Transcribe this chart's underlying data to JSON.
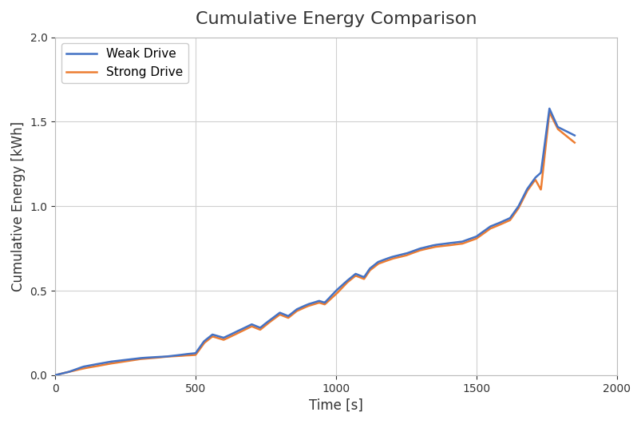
{
  "title": "Cumulative Energy Comparison",
  "xlabel": "Time [s]",
  "ylabel": "Cumulative Energy [kWh]",
  "xlim": [
    0,
    2000
  ],
  "ylim": [
    0,
    2.0
  ],
  "xticks": [
    0,
    500,
    1000,
    1500,
    2000
  ],
  "yticks": [
    0,
    0.5,
    1.0,
    1.5,
    2.0
  ],
  "weak_color": "#4472C4",
  "strong_color": "#ED7D31",
  "weak_label": "Weak Drive",
  "strong_label": "Strong Drive",
  "background_color": "#ffffff",
  "grid_color": "#d0d0d0",
  "title_fontsize": 16,
  "label_fontsize": 12,
  "legend_fontsize": 11,
  "line_width": 1.8,
  "figsize": [
    8.04,
    5.31
  ],
  "dpi": 100
}
